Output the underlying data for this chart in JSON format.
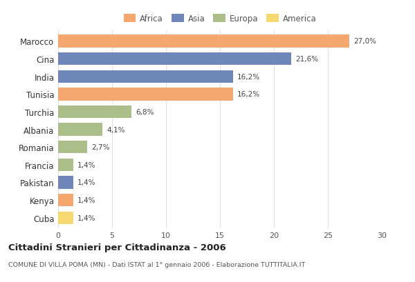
{
  "countries": [
    "Marocco",
    "Cina",
    "India",
    "Tunisia",
    "Turchia",
    "Albania",
    "Romania",
    "Francia",
    "Pakistan",
    "Kenya",
    "Cuba"
  ],
  "values": [
    27.0,
    21.6,
    16.2,
    16.2,
    6.8,
    4.1,
    2.7,
    1.4,
    1.4,
    1.4,
    1.4
  ],
  "labels": [
    "27,0%",
    "21,6%",
    "16,2%",
    "16,2%",
    "6,8%",
    "4,1%",
    "2,7%",
    "1,4%",
    "1,4%",
    "1,4%",
    "1,4%"
  ],
  "continents": [
    "Africa",
    "Asia",
    "Asia",
    "Africa",
    "Europa",
    "Europa",
    "Europa",
    "Europa",
    "Asia",
    "Africa",
    "America"
  ],
  "colors": {
    "Africa": "#F4A870",
    "Asia": "#6E86B8",
    "Europa": "#ABBE8A",
    "America": "#F5D870"
  },
  "legend_order": [
    "Africa",
    "Asia",
    "Europa",
    "America"
  ],
  "title": "Cittadini Stranieri per Cittadinanza - 2006",
  "subtitle": "COMUNE DI VILLA POMA (MN) - Dati ISTAT al 1° gennaio 2006 - Elaborazione TUTTITALIA.IT",
  "xlim": [
    0,
    30
  ],
  "xticks": [
    0,
    5,
    10,
    15,
    20,
    25,
    30
  ],
  "background_color": "#ffffff",
  "grid_color": "#e0e0e0"
}
